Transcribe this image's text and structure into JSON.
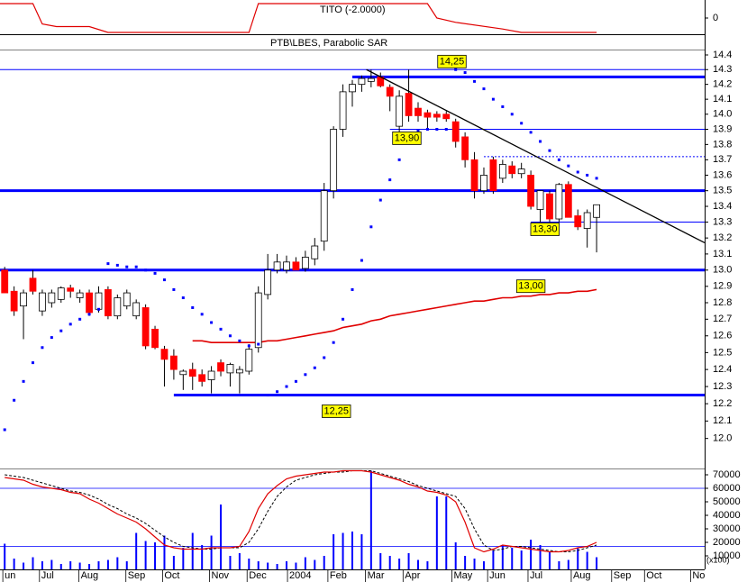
{
  "chart_data": [
    {
      "type": "line",
      "title": "TITO (-2.0000)",
      "color": "#e00000",
      "x": [
        -0.5,
        3,
        4,
        5.5,
        9,
        11,
        26,
        27,
        45,
        46,
        48,
        53,
        55,
        63
      ],
      "values": [
        0.94,
        0.94,
        -0.39,
        -0.56,
        -0.56,
        -0.94,
        -0.94,
        0.94,
        0.94,
        0,
        -0.28,
        -0.72,
        -0.94,
        -0.94
      ],
      "xlim": [
        -0.5,
        74.5
      ],
      "ylim": [
        -1,
        1
      ],
      "yticks": [
        0
      ]
    },
    {
      "type": "candlestick",
      "title": "PTB\\LBES, Parabolic SAR",
      "xlim": [
        -0.5,
        74.5
      ],
      "ylim": [
        11.83,
        14.53
      ],
      "log": true,
      "yticks": [
        {
          "value": 12,
          "label": "12.0"
        },
        12.1,
        12.2,
        12.3,
        12.4,
        12.5,
        12.6,
        12.7,
        12.8,
        12.9,
        {
          "value": 13,
          "label": "13.0"
        },
        13.1,
        13.2,
        13.3,
        13.4,
        13.5,
        13.6,
        13.7,
        13.8,
        13.9,
        {
          "value": 14,
          "label": "14.0"
        },
        14.1,
        14.2,
        14.3,
        14.4
      ],
      "up_color": "#ffffff",
      "down_color": "#ff0000",
      "open": [
        13.0,
        12.87,
        12.78,
        12.95,
        12.75,
        12.8,
        12.82,
        12.89,
        12.83,
        12.86,
        12.76,
        12.88,
        12.72,
        12.78,
        12.72,
        12.77,
        12.64,
        12.52,
        12.48,
        12.37,
        12.4,
        12.37,
        12.34,
        12.44,
        12.38,
        12.38,
        12.39,
        12.53,
        12.85,
        13.0,
        13.0,
        13.05,
        13.01,
        13.07,
        13.18,
        13.5,
        13.9,
        14.15,
        14.2,
        14.22,
        14.25,
        14.18,
        13.92,
        14.14,
        14.04,
        14.01,
        14.0,
        14.0,
        13.95,
        13.85,
        13.7,
        13.5,
        13.7,
        13.58,
        13.66,
        13.61,
        13.6,
        13.38,
        13.48,
        13.32,
        13.54,
        13.34,
        13.26,
        13.33
      ],
      "high": [
        13.02,
        12.9,
        12.88,
        13.0,
        12.88,
        12.88,
        12.9,
        12.91,
        12.88,
        12.88,
        12.9,
        12.9,
        12.85,
        12.88,
        12.82,
        12.79,
        12.66,
        12.54,
        12.52,
        12.4,
        12.44,
        12.4,
        12.42,
        12.46,
        12.44,
        12.42,
        12.55,
        12.9,
        13.1,
        13.1,
        13.09,
        13.08,
        13.12,
        13.2,
        13.55,
        13.92,
        14.2,
        14.23,
        14.26,
        14.3,
        14.28,
        14.2,
        14.16,
        14.3,
        14.08,
        14.03,
        14.02,
        14.02,
        13.97,
        13.88,
        13.75,
        13.65,
        13.72,
        13.7,
        13.69,
        13.68,
        13.63,
        13.5,
        13.5,
        13.55,
        13.56,
        13.38,
        13.38,
        13.41
      ],
      "low": [
        12.86,
        12.72,
        12.58,
        12.85,
        12.72,
        12.77,
        12.8,
        12.83,
        12.8,
        12.72,
        12.74,
        12.7,
        12.7,
        12.76,
        12.7,
        12.52,
        12.52,
        12.3,
        12.34,
        12.28,
        12.28,
        12.3,
        12.26,
        12.36,
        12.3,
        12.26,
        12.37,
        12.5,
        12.82,
        12.98,
        12.98,
        13.0,
        12.99,
        13.03,
        13.12,
        13.45,
        13.85,
        14.05,
        14.15,
        14.18,
        14.18,
        14.02,
        13.88,
        13.95,
        13.95,
        13.9,
        13.95,
        13.95,
        13.78,
        13.65,
        13.45,
        13.48,
        13.48,
        13.55,
        13.58,
        13.58,
        13.38,
        13.3,
        13.3,
        13.3,
        13.33,
        13.25,
        13.14,
        13.11
      ],
      "close": [
        12.86,
        12.75,
        12.86,
        12.87,
        12.86,
        12.86,
        12.89,
        12.87,
        12.86,
        12.74,
        12.86,
        12.72,
        12.83,
        12.86,
        12.8,
        12.54,
        12.53,
        12.46,
        12.4,
        12.39,
        12.36,
        12.33,
        12.39,
        12.39,
        12.43,
        12.4,
        12.52,
        12.86,
        13.0,
        13.05,
        13.05,
        13.0,
        13.08,
        13.15,
        13.5,
        13.9,
        14.15,
        14.2,
        14.24,
        14.24,
        14.19,
        14.12,
        14.12,
        13.99,
        13.99,
        13.98,
        13.98,
        13.97,
        13.82,
        13.7,
        13.5,
        13.6,
        13.5,
        13.67,
        13.61,
        13.64,
        13.4,
        13.5,
        13.32,
        13.54,
        13.33,
        13.27,
        13.36,
        13.41
      ],
      "sar": {
        "color": "#0000ff",
        "values": [
          12.05,
          12.22,
          12.33,
          12.44,
          12.53,
          12.59,
          12.63,
          12.67,
          12.7,
          12.73,
          12.76,
          13.04,
          13.03,
          13.02,
          13.02,
          13.0,
          12.98,
          12.94,
          12.88,
          12.83,
          12.77,
          12.73,
          12.68,
          12.64,
          12.6,
          12.57,
          12.54,
          12.55,
          12.25,
          12.27,
          12.3,
          12.33,
          12.37,
          12.41,
          12.47,
          12.56,
          12.7,
          12.88,
          13.06,
          13.27,
          13.44,
          13.57,
          13.7,
          13.81,
          13.89,
          13.9,
          13.9,
          13.9,
          14.3,
          14.28,
          14.22,
          14.17,
          14.1,
          14.05,
          14.0,
          13.94,
          13.88,
          13.82,
          13.76,
          13.7,
          13.66,
          13.62,
          13.6,
          13.58
        ]
      },
      "ma": {
        "color": "#e00000",
        "values": [
          null,
          null,
          null,
          null,
          null,
          null,
          null,
          null,
          null,
          null,
          null,
          null,
          null,
          null,
          null,
          null,
          null,
          null,
          null,
          null,
          12.57,
          12.57,
          12.56,
          12.56,
          12.56,
          12.56,
          12.56,
          12.56,
          12.57,
          12.57,
          12.58,
          12.59,
          12.6,
          12.61,
          12.62,
          12.63,
          12.65,
          12.66,
          12.67,
          12.69,
          12.7,
          12.72,
          12.73,
          12.74,
          12.75,
          12.76,
          12.77,
          12.78,
          12.79,
          12.8,
          12.81,
          12.81,
          12.82,
          12.83,
          12.83,
          12.84,
          12.84,
          12.85,
          12.85,
          12.86,
          12.86,
          12.87,
          12.87,
          12.88
        ]
      },
      "level_color": "#0000ff",
      "levels": [
        {
          "value": 14.25,
          "label": "14,25",
          "style": "thick",
          "from": 37
        },
        {
          "value": 13.9,
          "label": "13,90",
          "style": "thin",
          "from": 41
        },
        {
          "value": 13.3,
          "label": "13,30",
          "style": "thin",
          "from": 56
        },
        {
          "value": 13.0,
          "label": "13,00",
          "style": "thick",
          "from": -0.5
        },
        {
          "value": 12.25,
          "label": "12,25",
          "style": "thick",
          "from": 18
        },
        {
          "value": 13.5,
          "style": "thick",
          "from": -0.5
        },
        {
          "value": 14.3,
          "style": "thin",
          "from": -0.5
        },
        {
          "value": 13.72,
          "style": "dashed",
          "from": 51
        }
      ],
      "trendline": {
        "color": "#000000",
        "x": [
          38.5,
          74.5
        ],
        "y": [
          14.3,
          13.17
        ]
      }
    },
    {
      "type": "volume",
      "xlim": [
        -0.5,
        74.5
      ],
      "ylim": [
        0,
        74667
      ],
      "yticks": [
        10000,
        20000,
        30000,
        40000,
        50000,
        60000,
        70000
      ],
      "unit_note": "(x100)",
      "bands": [
        60000,
        17000
      ],
      "band_color": "#0000ff",
      "volume": {
        "color": "#0000ff",
        "values": [
          19000,
          8000,
          5000,
          9000,
          6000,
          7000,
          4000,
          6000,
          5000,
          4000,
          6000,
          7000,
          9000,
          6000,
          27000,
          21000,
          20000,
          25000,
          10000,
          16000,
          27000,
          18000,
          25000,
          48000,
          10000,
          12000,
          8000,
          6000,
          5000,
          4000,
          6000,
          5000,
          9000,
          7000,
          10000,
          26000,
          27000,
          28000,
          26000,
          73000,
          12000,
          10000,
          8000,
          12000,
          7000,
          6000,
          54000,
          54000,
          20000,
          10000,
          8000,
          6000,
          14000,
          18000,
          16000,
          14000,
          22000,
          18000,
          13000,
          6000,
          7000,
          16000,
          13000,
          9000
        ]
      },
      "k": {
        "color": "#e00000",
        "values": [
          68000,
          67000,
          66000,
          63000,
          61000,
          60000,
          59000,
          57000,
          56000,
          52000,
          49000,
          45000,
          41000,
          38000,
          35000,
          30000,
          24000,
          18000,
          16000,
          15000,
          15000,
          15000,
          16000,
          16000,
          16000,
          17000,
          28000,
          45000,
          56000,
          62000,
          67000,
          69000,
          70000,
          71000,
          72000,
          72000,
          73000,
          73000,
          73000,
          72000,
          70000,
          68000,
          66000,
          63000,
          61000,
          58000,
          57000,
          55000,
          50000,
          35000,
          16000,
          13000,
          15000,
          18000,
          17000,
          16000,
          15000,
          14000,
          13000,
          13000,
          14000,
          16000,
          17000,
          20000
        ]
      },
      "d": {
        "color": "#000000",
        "values": [
          70000,
          69000,
          68000,
          66000,
          64000,
          62000,
          60000,
          58000,
          57000,
          55000,
          52000,
          48000,
          45000,
          41000,
          38000,
          34000,
          29000,
          24000,
          20000,
          17000,
          16000,
          15000,
          15000,
          16000,
          16000,
          16000,
          20000,
          30000,
          43000,
          54000,
          61000,
          66000,
          68000,
          70000,
          71000,
          72000,
          72000,
          73000,
          73000,
          73000,
          71000,
          69000,
          67000,
          65000,
          62000,
          60000,
          58000,
          56000,
          54000,
          45000,
          30000,
          18000,
          14000,
          15000,
          17000,
          17000,
          16000,
          15000,
          14000,
          13000,
          13000,
          14000,
          16000,
          18000
        ]
      },
      "xticks": [
        {
          "value": -0.2,
          "label": "un"
        },
        {
          "value": 3.7,
          "label": "Jul"
        },
        {
          "value": 7.9,
          "label": "Aug"
        },
        {
          "value": 12.9,
          "label": "Sep"
        },
        {
          "value": 16.8,
          "label": "Oct"
        },
        {
          "value": 21.8,
          "label": "Nov"
        },
        {
          "value": 25.8,
          "label": "Dec"
        },
        {
          "value": 30.1,
          "label": "2004"
        },
        {
          "value": 34.4,
          "label": "Feb"
        },
        {
          "value": 38.4,
          "label": "Mar"
        },
        {
          "value": 42.4,
          "label": "Apr"
        },
        {
          "value": 47.6,
          "label": "May"
        },
        {
          "value": 51.4,
          "label": "Jun"
        },
        {
          "value": 55.7,
          "label": "Jul"
        },
        {
          "value": 60.3,
          "label": "Aug"
        },
        {
          "value": 64.6,
          "label": "Sep"
        },
        {
          "value": 68.1,
          "label": "Oct"
        },
        {
          "value": 73,
          "label": "No"
        }
      ]
    }
  ]
}
